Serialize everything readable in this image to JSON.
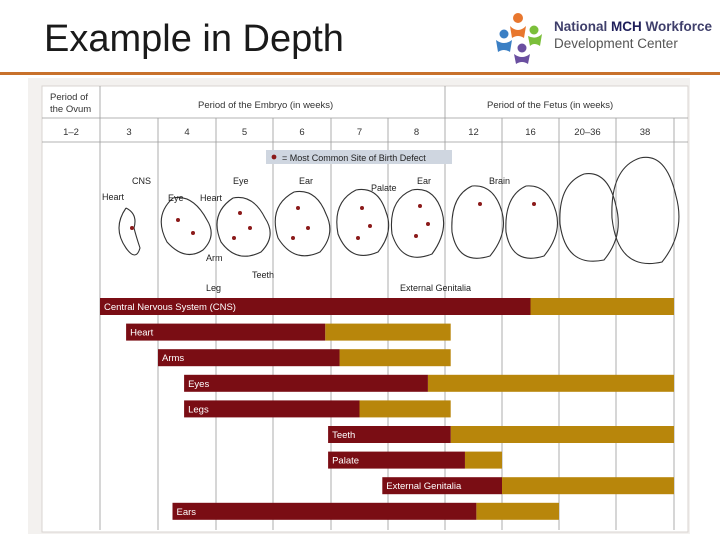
{
  "slide": {
    "title": "Example in Depth"
  },
  "logo": {
    "line1_a": "National ",
    "line1_b": "MCH",
    "line1_c": " Workforce",
    "line2": "Development Center"
  },
  "colors": {
    "critical": "#7a0d14",
    "less_sensitive": "#b8860b",
    "accent_rule": "#c8712b",
    "dot": "#8b1a1a"
  },
  "headers": {
    "ovum": [
      "Period of",
      "the Ovum"
    ],
    "embryo": "Period of the Embryo (in weeks)",
    "fetus": "Period of the Fetus (in weeks)",
    "weeks": [
      "1–2",
      "3",
      "4",
      "5",
      "6",
      "7",
      "8",
      "12",
      "16",
      "20–36",
      "38"
    ]
  },
  "legend": {
    "dot_icon": "dot-icon",
    "text": "= Most Common Site of Birth Defect"
  },
  "annotations": [
    "CNS",
    "Heart",
    "Eye",
    "Heart",
    "Eye",
    "Ear",
    "Palate",
    "Ear",
    "Brain",
    "Arm",
    "Teeth",
    "Leg",
    "External Genitalia"
  ],
  "bars": [
    {
      "label": "Central Nervous System (CNS)",
      "start": 1,
      "dark_end": 8.5,
      "light_end": 11
    },
    {
      "label": "Heart",
      "start": 1.45,
      "dark_end": 4.9,
      "light_end": 7.1
    },
    {
      "label": "Arms",
      "start": 2,
      "dark_end": 5.15,
      "light_end": 7.1
    },
    {
      "label": "Eyes",
      "start": 2.45,
      "dark_end": 6.7,
      "light_end": 11
    },
    {
      "label": "Legs",
      "start": 2.45,
      "dark_end": 5.5,
      "light_end": 7.1
    },
    {
      "label": "Teeth",
      "start": 4.95,
      "dark_end": 7.1,
      "light_end": 11
    },
    {
      "label": "Palate",
      "start": 4.95,
      "dark_end": 7.35,
      "light_end": 8
    },
    {
      "label": "External Genitalia",
      "start": 5.9,
      "dark_end": 8,
      "light_end": 11
    },
    {
      "label": "Ears",
      "start": 2.25,
      "dark_end": 7.55,
      "light_end": 9
    }
  ]
}
